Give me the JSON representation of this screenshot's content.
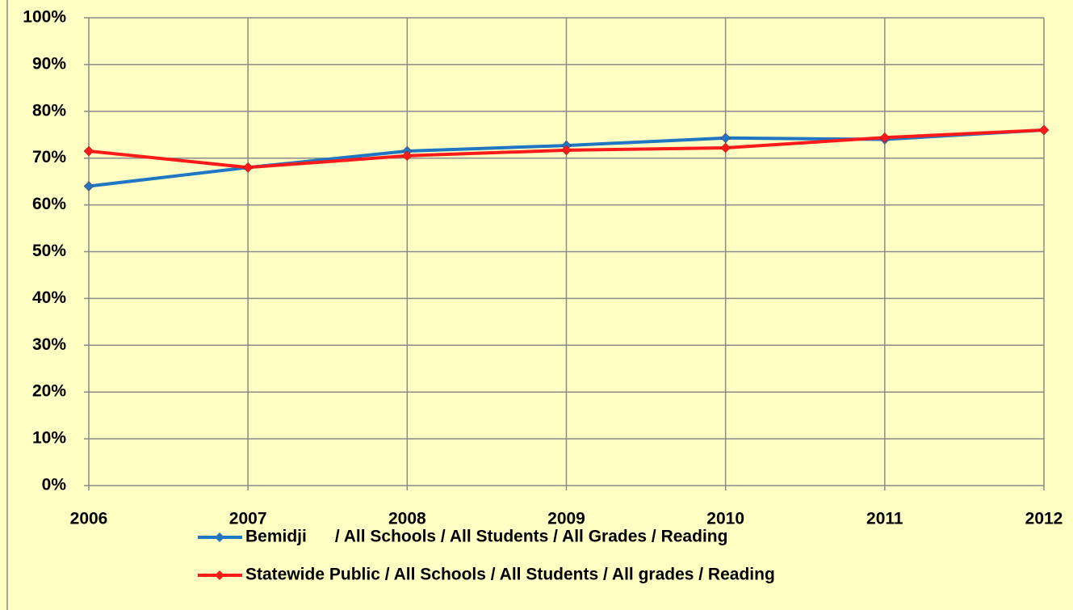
{
  "chart_data": {
    "type": "line",
    "categories": [
      "2006",
      "2007",
      "2008",
      "2009",
      "2010",
      "2011",
      "2012"
    ],
    "series": [
      {
        "name": "Bemidji      / All Schools / All Students / All Grades / Reading",
        "color": "#1f77c4",
        "values": [
          64,
          68,
          71.5,
          72.7,
          74.3,
          74,
          76
        ]
      },
      {
        "name": "Statewide Public / All Schools / All Students / All grades / Reading",
        "color": "#ff1a1a",
        "values": [
          71.5,
          68,
          70.5,
          71.7,
          72.2,
          74.4,
          76
        ]
      }
    ],
    "ylim": [
      0,
      100
    ],
    "yticks": [
      {
        "value": 0,
        "label": "0%"
      },
      {
        "value": 10,
        "label": "10%"
      },
      {
        "value": 20,
        "label": "20%"
      },
      {
        "value": 30,
        "label": "30%"
      },
      {
        "value": 40,
        "label": "40%"
      },
      {
        "value": 50,
        "label": "50%"
      },
      {
        "value": 60,
        "label": "60%"
      },
      {
        "value": 70,
        "label": "70%"
      },
      {
        "value": 80,
        "label": "80%"
      },
      {
        "value": 90,
        "label": "90%"
      },
      {
        "value": 100,
        "label": "100%"
      }
    ],
    "grid": true,
    "legend": "bottom"
  }
}
